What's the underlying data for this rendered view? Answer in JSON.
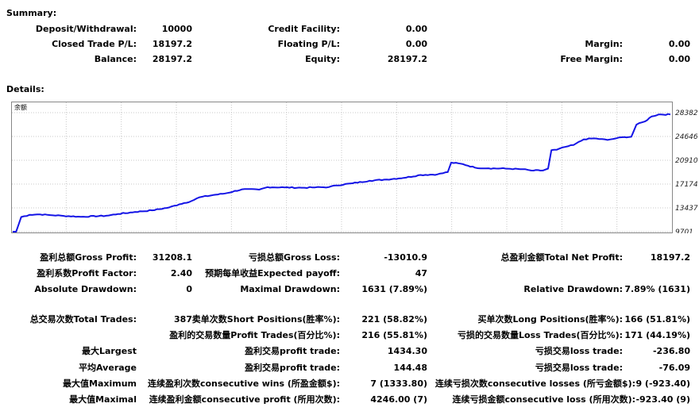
{
  "summary": {
    "title": "Summary:",
    "deposit_label": "Deposit/Withdrawal:",
    "deposit_value": "10000",
    "credit_label": "Credit Facility:",
    "credit_value": "0.00",
    "closed_pl_label": "Closed Trade P/L:",
    "closed_pl_value": "18197.2",
    "floating_pl_label": "Floating P/L:",
    "floating_pl_value": "0.00",
    "margin_label": "Margin:",
    "margin_value": "0.00",
    "balance_label": "Balance:",
    "balance_value": "28197.2",
    "equity_label": "Equity:",
    "equity_value": "28197.2",
    "free_margin_label": "Free Margin:",
    "free_margin_value": "0.00"
  },
  "details": {
    "title": "Details:",
    "gross_profit_label": "盈利总额Gross Profit:",
    "gross_profit_value": "31208.1",
    "gross_loss_label": "亏损总额Gross Loss:",
    "gross_loss_value": "-13010.9",
    "net_profit_label": "总盈利金额Total Net Profit:",
    "net_profit_value": "18197.2",
    "profit_factor_label": "盈利系数Profit Factor:",
    "profit_factor_value": "2.40",
    "expected_payoff_label": "预期每单收益Expected payoff:",
    "expected_payoff_value": "47",
    "abs_drawdown_label": "Absolute Drawdown:",
    "abs_drawdown_value": "0",
    "max_drawdown_label": "Maximal Drawdown:",
    "max_drawdown_value": "1631 (7.89%)",
    "rel_drawdown_label": "Relative Drawdown:",
    "rel_drawdown_value": "7.89% (1631)",
    "total_trades_label": "总交易次数Total Trades:",
    "total_trades_value": "387",
    "short_label": "卖单次数Short Positions(胜率%):",
    "short_value": "221 (58.82%)",
    "long_label": "买单次数Long Positions(胜率%):",
    "long_value": "166 (51.81%)",
    "profit_trades_label": "盈利的交易数量Profit Trades(百分比%):",
    "profit_trades_value": "216 (55.81%)",
    "loss_trades_label": "亏损的交易数量Loss Trades(百分比%):",
    "loss_trades_value": "171 (44.19%)",
    "largest_label": "最大Largest",
    "largest_profit_label": "盈利交易profit trade:",
    "largest_profit_value": "1434.30",
    "largest_loss_label": "亏损交易loss trade:",
    "largest_loss_value": "-236.80",
    "average_label": "平均Average",
    "average_profit_label": "盈利交易profit trade:",
    "average_profit_value": "144.48",
    "average_loss_label": "亏损交易loss trade:",
    "average_loss_value": "-76.09",
    "maximum_label": "最大值Maximum",
    "cons_wins_label": "连续盈利次数consecutive wins (所盈金额$):",
    "cons_wins_value": "7 (1333.80)",
    "cons_losses_label": "连续亏损次数consecutive losses (所亏金额$):",
    "cons_losses_value": "9 (-923.40)",
    "maximal_label": "最大值Maximal",
    "cons_profit_label": "连续盈利金额consecutive profit (所用次数):",
    "cons_profit_value": "4246.00 (7)",
    "cons_loss_label": "连续亏损金额consecutive loss (所用次数):",
    "cons_loss_value": "-923.40 (9)"
  },
  "chart_data": {
    "type": "line",
    "series": [
      {
        "name": "余额",
        "color": "#1414e6"
      }
    ],
    "yticks": [
      9701,
      13437,
      17174,
      20910,
      24646,
      28382
    ],
    "ylim": [
      9701,
      28382
    ],
    "xlim": [
      0,
      387
    ],
    "grid": true,
    "points": [
      [
        0,
        9701
      ],
      [
        2,
        9705
      ],
      [
        5,
        12000
      ],
      [
        10,
        12350
      ],
      [
        16,
        12420
      ],
      [
        22,
        12300
      ],
      [
        30,
        12180
      ],
      [
        40,
        12040
      ],
      [
        55,
        12200
      ],
      [
        62,
        12480
      ],
      [
        72,
        12800
      ],
      [
        82,
        13050
      ],
      [
        92,
        13500
      ],
      [
        98,
        14000
      ],
      [
        105,
        14500
      ],
      [
        110,
        15100
      ],
      [
        118,
        15450
      ],
      [
        125,
        15700
      ],
      [
        135,
        16350
      ],
      [
        145,
        16300
      ],
      [
        150,
        16700
      ],
      [
        160,
        16650
      ],
      [
        170,
        16600
      ],
      [
        178,
        16650
      ],
      [
        186,
        16700
      ],
      [
        190,
        16950
      ],
      [
        200,
        17300
      ],
      [
        210,
        17700
      ],
      [
        220,
        17900
      ],
      [
        230,
        18150
      ],
      [
        240,
        18600
      ],
      [
        250,
        18700
      ],
      [
        256,
        19050
      ],
      [
        258,
        20550
      ],
      [
        265,
        20300
      ],
      [
        272,
        19750
      ],
      [
        280,
        19650
      ],
      [
        290,
        19600
      ],
      [
        300,
        19500
      ],
      [
        305,
        19300
      ],
      [
        312,
        19300
      ],
      [
        315,
        19600
      ],
      [
        317,
        22500
      ],
      [
        320,
        22550
      ],
      [
        325,
        23000
      ],
      [
        330,
        23300
      ],
      [
        336,
        24200
      ],
      [
        342,
        24350
      ],
      [
        350,
        24100
      ],
      [
        355,
        24350
      ],
      [
        360,
        24550
      ],
      [
        364,
        24600
      ],
      [
        367,
        26500
      ],
      [
        372,
        27000
      ],
      [
        376,
        27800
      ],
      [
        380,
        28100
      ],
      [
        387,
        28100
      ]
    ]
  }
}
